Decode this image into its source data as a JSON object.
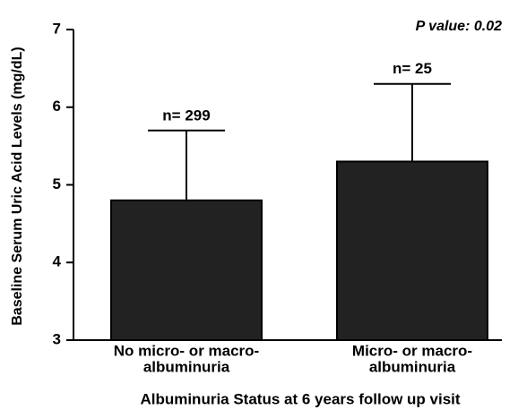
{
  "chart_data": {
    "type": "bar",
    "annotation": "P value: 0.02",
    "x_label": "Albuminuria Status at 6 years follow up visit",
    "y_label": "Baseline Serum Uric Acid Levels (mg/dL)",
    "categories": [
      [
        "No micro- or macro-",
        "albuminuria"
      ],
      [
        "Micro- or macro-",
        "albuminuria"
      ]
    ],
    "values": [
      4.8,
      5.3
    ],
    "errors": [
      0.9,
      1.0
    ],
    "n_labels": [
      "n= 299",
      "n= 25"
    ],
    "color": "#222222",
    "ylim": [
      3,
      7
    ],
    "yticks": [
      3,
      4,
      5,
      6,
      7
    ]
  }
}
